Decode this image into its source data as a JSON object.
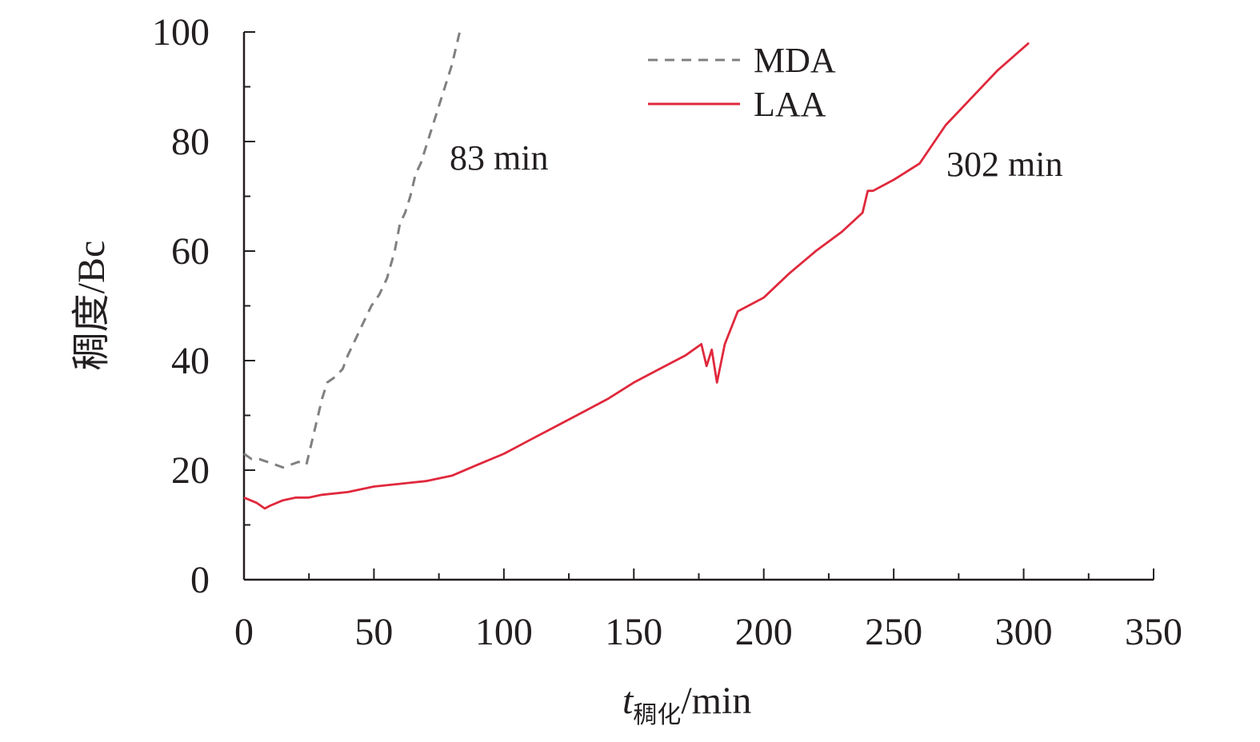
{
  "chart_data": {
    "type": "line",
    "title": "",
    "xlabel": "",
    "xlabel_main": "t",
    "xlabel_sub": "稠化",
    "xlabel_unit": "/min",
    "ylabel": "稠度/Bc",
    "xlim": [
      0,
      350
    ],
    "ylim": [
      0,
      100
    ],
    "x_ticks": [
      0,
      50,
      100,
      150,
      200,
      250,
      300,
      350
    ],
    "x_tick_labels": [
      "0",
      "50",
      "100",
      "150",
      "200",
      "250",
      "300",
      "350"
    ],
    "y_ticks": [
      0,
      20,
      40,
      60,
      80,
      100
    ],
    "y_tick_labels": [
      "0",
      "20",
      "40",
      "60",
      "80",
      "100"
    ],
    "grid": false,
    "legend_position": "top-center",
    "series": [
      {
        "name": "MDA",
        "style": "dashed",
        "color": "#808080",
        "x": [
          0,
          3,
          6,
          9,
          12,
          15,
          18,
          21,
          24,
          26,
          28,
          30,
          32,
          35,
          38,
          40,
          43,
          46,
          49,
          52,
          55,
          58,
          60,
          62,
          64,
          66,
          68,
          70,
          72,
          74,
          76,
          78,
          80,
          82,
          83
        ],
        "y": [
          23,
          22,
          22,
          21.5,
          21,
          20.5,
          21,
          21.5,
          21,
          25,
          29,
          33,
          36,
          37,
          38.5,
          41,
          44,
          47,
          50,
          52,
          55,
          60,
          65,
          67,
          70,
          74,
          76,
          79,
          82,
          85,
          88,
          91,
          94,
          98,
          100
        ]
      },
      {
        "name": "LAA",
        "style": "solid",
        "color": "#e0283c",
        "x": [
          0,
          5,
          8,
          10,
          15,
          20,
          25,
          30,
          40,
          50,
          60,
          70,
          80,
          90,
          100,
          110,
          120,
          130,
          140,
          150,
          160,
          170,
          176,
          178,
          180,
          182,
          185,
          190,
          200,
          210,
          220,
          230,
          238,
          240,
          242,
          250,
          260,
          270,
          280,
          290,
          302
        ],
        "y": [
          15,
          14,
          13,
          13.5,
          14.5,
          15,
          15,
          15.5,
          16,
          17,
          17.5,
          18,
          19,
          21,
          23,
          25.5,
          28,
          30.5,
          33,
          36,
          38.5,
          41,
          43,
          39,
          42,
          36,
          43,
          49,
          51.5,
          56,
          60,
          63.5,
          67,
          71,
          71,
          73,
          76,
          83,
          88,
          93,
          98
        ]
      }
    ],
    "annotations": [
      "83 min",
      "302 min"
    ]
  }
}
